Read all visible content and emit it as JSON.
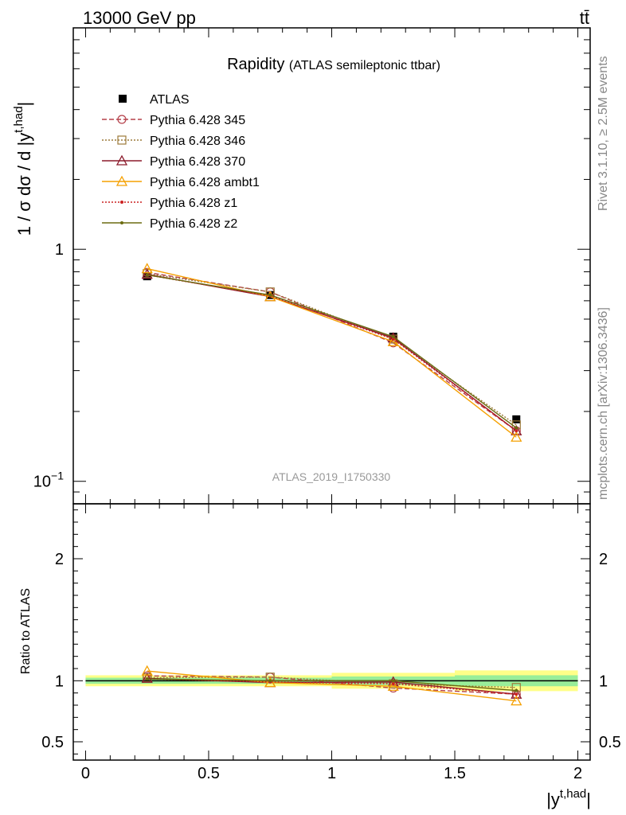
{
  "header": {
    "energy": "13000 GeV pp",
    "process": "tt̄"
  },
  "side_labels": {
    "rivet": "Rivet 3.1.10, ≥ 2.5M events",
    "source": "mcplots.cern.ch [arXiv:1306.3436]"
  },
  "analysis_id": "ATLAS_2019_I1750330",
  "chart_data": [
    {
      "type": "line",
      "title": "Rapidity",
      "subtitle": "(ATLAS semileptonic ttbar)",
      "ylabel": "1 / σ dσ / d |y^t,had|",
      "xlabel": "|y^t,had|",
      "yscale": "log",
      "xlim": [
        -0.05,
        2.05
      ],
      "ylim": [
        0.08,
        9.0
      ],
      "ytick_labels": [
        {
          "value": 1,
          "label": "1"
        },
        {
          "value": 0.1,
          "label": "10^-1"
        }
      ],
      "legend_position": "top-left",
      "x": [
        0.25,
        0.75,
        1.25,
        1.75
      ],
      "series": [
        {
          "name": "ATLAS",
          "color": "#000000",
          "values": [
            0.765,
            0.635,
            0.42,
            0.185
          ],
          "errors": [
            0.012,
            0.01,
            0.008,
            0.006
          ]
        },
        {
          "name": "Pythia 6.428 345",
          "color": "#b5404a",
          "dash": "6,3",
          "marker": "circle",
          "values": [
            0.795,
            0.655,
            0.395,
            0.165
          ]
        },
        {
          "name": "Pythia 6.428 346",
          "color": "#9c7a3a",
          "dash": "2,2",
          "marker": "square",
          "values": [
            0.785,
            0.655,
            0.41,
            0.175
          ]
        },
        {
          "name": "Pythia 6.428 370",
          "color": "#8b1a2b",
          "dash": "",
          "marker": "triangle",
          "values": [
            0.78,
            0.625,
            0.415,
            0.165
          ]
        },
        {
          "name": "Pythia 6.428 ambt1",
          "color": "#f5a000",
          "dash": "",
          "marker": "triangle",
          "values": [
            0.825,
            0.625,
            0.4,
            0.155
          ]
        },
        {
          "name": "Pythia 6.428 z1",
          "color": "#cc2222",
          "dash": "2,2",
          "marker": "dot",
          "values": [
            0.775,
            0.63,
            0.41,
            0.165
          ]
        },
        {
          "name": "Pythia 6.428 z2",
          "color": "#6b6b10",
          "dash": "",
          "marker": "dot",
          "values": [
            0.775,
            0.635,
            0.42,
            0.17
          ]
        }
      ]
    },
    {
      "type": "line",
      "ylabel": "Ratio to ATLAS",
      "xlabel": "|y^t,had|",
      "xlim": [
        -0.05,
        2.05
      ],
      "ylim": [
        0.35,
        2.45
      ],
      "xticks": [
        0,
        0.5,
        1,
        1.5,
        2
      ],
      "xtick_labels": [
        "0",
        "0.5",
        "1",
        "1.5",
        "2"
      ],
      "yticks": [
        0.5,
        1,
        2
      ],
      "ytick_labels": [
        "0.5",
        "1",
        "2"
      ],
      "x": [
        0.25,
        0.75,
        1.25,
        1.75
      ],
      "bands": [
        {
          "x": [
            0,
            0.5
          ],
          "green": 0.025,
          "yellow": 0.045
        },
        {
          "x": [
            0.5,
            1
          ],
          "green": 0.025,
          "yellow": 0.045
        },
        {
          "x": [
            1,
            1.5
          ],
          "green": 0.035,
          "yellow": 0.065
        },
        {
          "x": [
            1.5,
            2
          ],
          "green": 0.045,
          "yellow": 0.085
        }
      ],
      "series": [
        {
          "name": "Pythia 6.428 345",
          "values": [
            1.04,
            1.03,
            0.94,
            0.89
          ]
        },
        {
          "name": "Pythia 6.428 346",
          "values": [
            1.025,
            1.03,
            0.975,
            0.945
          ]
        },
        {
          "name": "Pythia 6.428 370",
          "values": [
            1.02,
            0.985,
            0.99,
            0.89
          ]
        },
        {
          "name": "Pythia 6.428 ambt1",
          "values": [
            1.08,
            0.985,
            0.955,
            0.835
          ]
        },
        {
          "name": "Pythia 6.428 z1",
          "values": [
            1.015,
            0.99,
            0.975,
            0.89
          ]
        },
        {
          "name": "Pythia 6.428 z2",
          "values": [
            1.015,
            1.0,
            1.0,
            0.92
          ]
        }
      ]
    }
  ]
}
